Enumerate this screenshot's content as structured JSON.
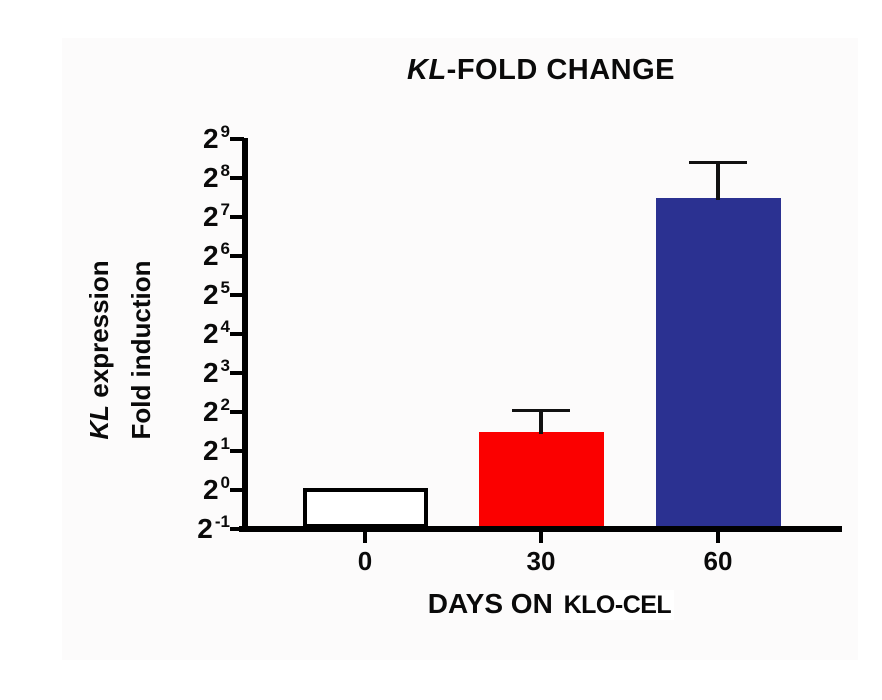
{
  "figure": {
    "title_italic": "KL",
    "title_rest": "-FOLD CHANGE",
    "y_title_italic": "KL",
    "y_title_line1_rest": " expression",
    "y_title_line2": "Fold induction",
    "x_title_main": "DAYS ON",
    "x_title_suffix": "KLO-CEL"
  },
  "chart_data": {
    "type": "bar",
    "title": "KL-FOLD CHANGE",
    "xlabel": "DAYS ON KLO-CEL",
    "ylabel": "KL expression Fold induction",
    "y_scale": "log2",
    "y_tick_base": "2",
    "y_tick_exponents": [
      "9",
      "8",
      "7",
      "6",
      "5",
      "4",
      "3",
      "2",
      "1",
      "0",
      "-1"
    ],
    "ylim_log2": [
      -1,
      9
    ],
    "grid": false,
    "legend": false,
    "categories": [
      "0",
      "30",
      "60"
    ],
    "series": [
      {
        "name": "KL fold induction",
        "values_log2": [
          0,
          1.48,
          7.49
        ],
        "values_fold": [
          1.0,
          2.8,
          180
        ],
        "error_top_log2": [
          null,
          2.04,
          8.41
        ],
        "error_top_fold": [
          null,
          4.1,
          340
        ]
      }
    ],
    "bar_fill_colors": [
      "#ffffff",
      "#fb0000",
      "#2b3191"
    ],
    "bar_border_colors": [
      "#000000",
      "none",
      "none"
    ],
    "axis_color": "#000000"
  }
}
